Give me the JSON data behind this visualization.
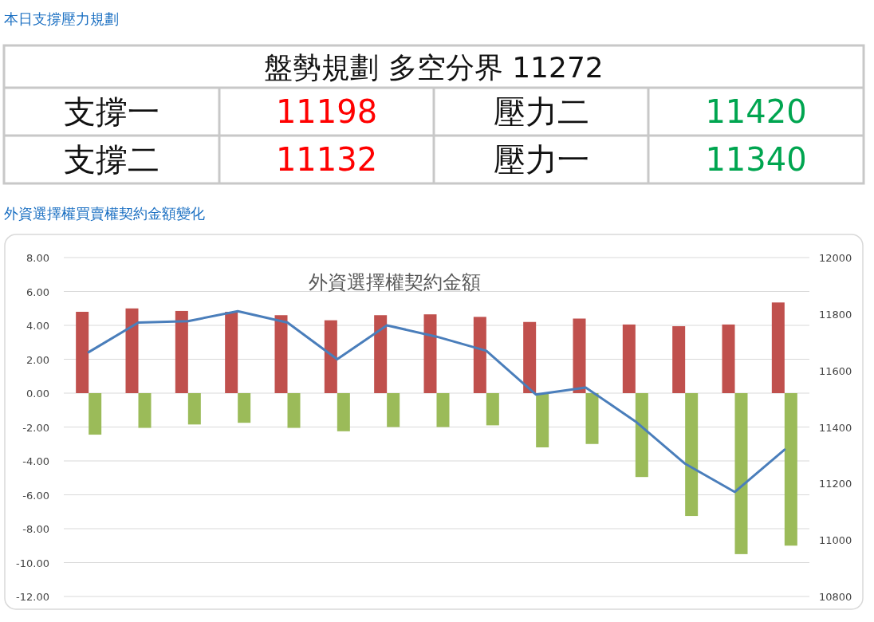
{
  "chart_data": [
    {
      "type": "other",
      "title": "本日支撐壓力規劃",
      "annotations": [
        "盤勢規劃 多空分界 11272",
        "支撐一",
        "11198",
        "壓力二",
        "11420",
        "支撐二",
        "11132",
        "壓力一",
        "11340"
      ]
    },
    {
      "type": "bar",
      "title": "外資選擇權買賣權契約金額變化",
      "subtitle": "外資選擇權契約金額",
      "categories": [
        null,
        null,
        null,
        null,
        null,
        null,
        null,
        null,
        null,
        null,
        null,
        null,
        null,
        null,
        null
      ],
      "series": [
        {
          "color": "#c0504d",
          "values": [
            4.8,
            5.0,
            4.85,
            4.8,
            4.6,
            4.3,
            4.6,
            4.65,
            4.5,
            4.2,
            4.4,
            4.05,
            3.95,
            4.05,
            5.35
          ]
        },
        {
          "color": "#9bbb59",
          "values": [
            -2.45,
            -2.05,
            -1.85,
            -1.75,
            -2.05,
            -2.25,
            -2.0,
            -2.0,
            -1.9,
            -3.2,
            -3.0,
            -4.95,
            -7.25,
            -9.5,
            -9.0
          ]
        },
        {
          "type": "line",
          "axis": "y2",
          "color": "#4a7ebb",
          "values": [
            11665,
            11770,
            11775,
            11810,
            11770,
            11640,
            11760,
            11720,
            11670,
            11515,
            11540,
            11420,
            11270,
            11170,
            11320
          ]
        }
      ],
      "ylim": [
        -12,
        8
      ],
      "yticks": [
        {
          "value": 8,
          "label": "8.00"
        },
        {
          "value": 6,
          "label": "6.00"
        },
        {
          "value": 4,
          "label": "4.00"
        },
        {
          "value": 2,
          "label": "2.00"
        },
        {
          "value": 0,
          "label": "0.00"
        },
        {
          "value": -2,
          "label": "-2.00"
        },
        {
          "value": -4,
          "label": "-4.00"
        },
        {
          "value": -6,
          "label": "-6.00"
        },
        {
          "value": -8,
          "label": "-8.00"
        },
        {
          "value": -10,
          "label": "-10.00"
        },
        {
          "value": -12,
          "label": "-12.00"
        }
      ],
      "y2lim": [
        10800,
        12000
      ],
      "y2ticks": [
        12000,
        11800,
        11600,
        11400,
        11200,
        11000,
        10800
      ],
      "grid": "y",
      "tick_labels": "y",
      "line_style": "solid",
      "marker": "none"
    }
  ]
}
